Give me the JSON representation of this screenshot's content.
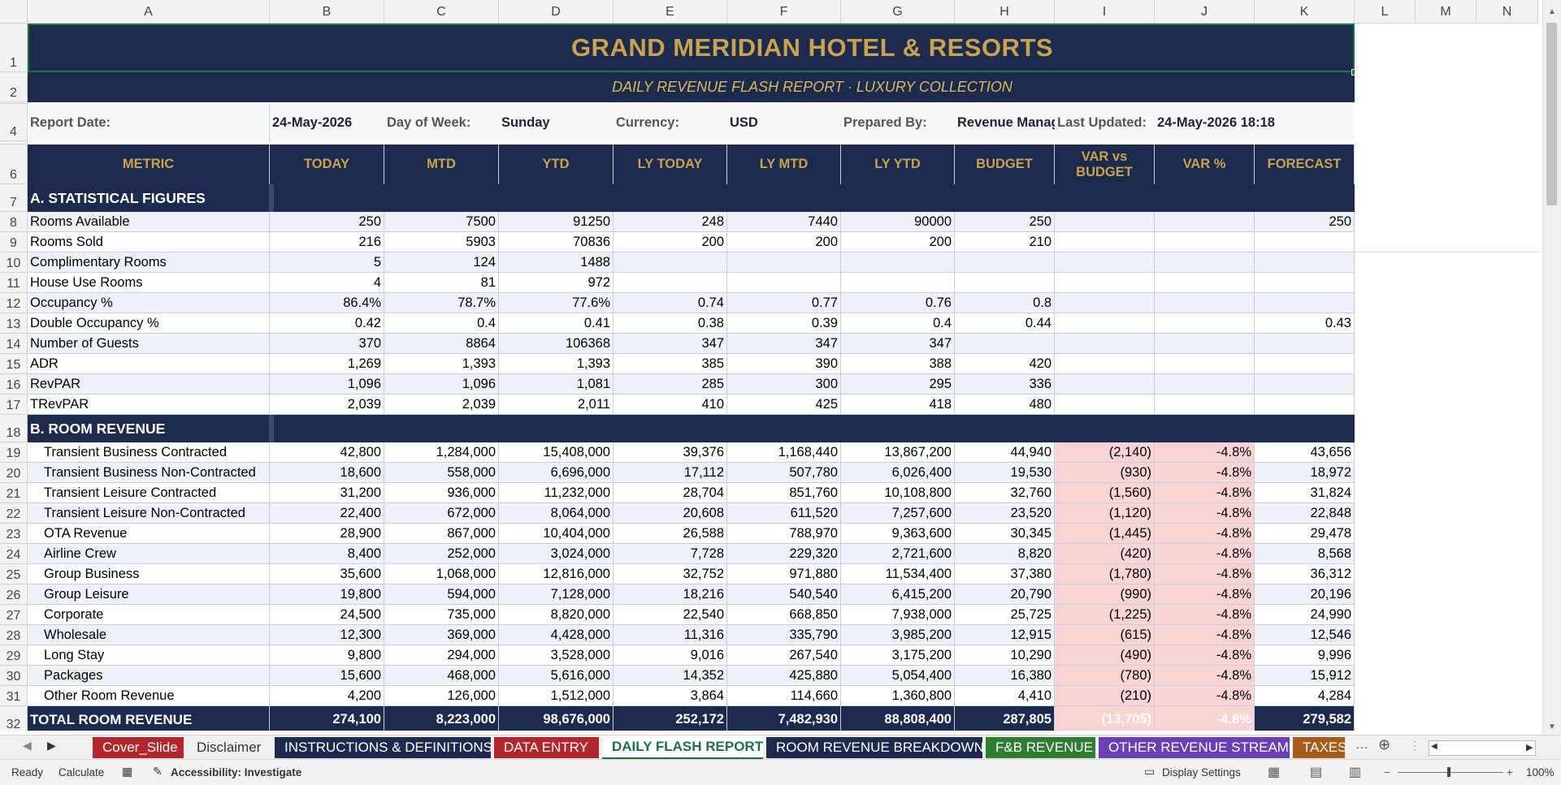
{
  "columns": [
    "A",
    "B",
    "C",
    "D",
    "E",
    "F",
    "G",
    "H",
    "I",
    "J",
    "K",
    "L",
    "M",
    "N"
  ],
  "banner": {
    "title": "GRAND MERIDIAN HOTEL & RESORTS",
    "subtitle": "DAILY REVENUE FLASH REPORT  ·  LUXURY COLLECTION"
  },
  "info": {
    "report_date_label": "Report Date:",
    "report_date": "24-May-2026",
    "dow_label": "Day of Week:",
    "dow": "Sunday",
    "currency_label": "Currency:",
    "currency": "USD",
    "prepared_label": "Prepared By:",
    "prepared": "Revenue Manag",
    "updated_label": "Last Updated:",
    "updated": "24-May-2026 18:18"
  },
  "headers": [
    "METRIC",
    "TODAY",
    "MTD",
    "YTD",
    "LY TODAY",
    "LY MTD",
    "LY YTD",
    "BUDGET",
    "VAR vs BUDGET",
    "VAR %",
    "FORECAST"
  ],
  "section_a": "A. STATISTICAL FIGURES",
  "stats_rows": [
    {
      "num": "8",
      "label": "Rooms Available",
      "v": [
        "250",
        "7500",
        "91250",
        "248",
        "7440",
        "90000",
        "250",
        "",
        "",
        "250"
      ]
    },
    {
      "num": "9",
      "label": "Rooms Sold",
      "v": [
        "216",
        "5903",
        "70836",
        "200",
        "200",
        "200",
        "210",
        "",
        "",
        ""
      ]
    },
    {
      "num": "10",
      "label": "Complimentary Rooms",
      "v": [
        "5",
        "124",
        "1488",
        "",
        "",
        "",
        "",
        "",
        "",
        ""
      ]
    },
    {
      "num": "11",
      "label": "House Use Rooms",
      "v": [
        "4",
        "81",
        "972",
        "",
        "",
        "",
        "",
        "",
        "",
        ""
      ]
    },
    {
      "num": "12",
      "label": "Occupancy %",
      "v": [
        "86.4%",
        "78.7%",
        "77.6%",
        "0.74",
        "0.77",
        "0.76",
        "0.8",
        "",
        "",
        ""
      ]
    },
    {
      "num": "13",
      "label": "Double Occupancy %",
      "v": [
        "0.42",
        "0.4",
        "0.41",
        "0.38",
        "0.39",
        "0.4",
        "0.44",
        "",
        "",
        "0.43"
      ]
    },
    {
      "num": "14",
      "label": "Number of Guests",
      "v": [
        "370",
        "8864",
        "106368",
        "347",
        "347",
        "347",
        "",
        "",
        "",
        ""
      ]
    },
    {
      "num": "15",
      "label": "ADR",
      "v": [
        "1,269",
        "1,393",
        "1,393",
        "385",
        "390",
        "388",
        "420",
        "",
        "",
        ""
      ]
    },
    {
      "num": "16",
      "label": "RevPAR",
      "v": [
        "1,096",
        "1,096",
        "1,081",
        "285",
        "300",
        "295",
        "336",
        "",
        "",
        ""
      ]
    },
    {
      "num": "17",
      "label": "TRevPAR",
      "v": [
        "2,039",
        "2,039",
        "2,011",
        "410",
        "425",
        "418",
        "480",
        "",
        "",
        ""
      ]
    }
  ],
  "section_b": "B. ROOM REVENUE",
  "revenue_rows": [
    {
      "num": "19",
      "label": "Transient Business Contracted",
      "v": [
        "42,800",
        "1,284,000",
        "15,408,000",
        "39,376",
        "1,168,440",
        "13,867,200",
        "44,940",
        "(2,140)",
        "-4.8%",
        "43,656"
      ]
    },
    {
      "num": "20",
      "label": "Transient Business Non-Contracted",
      "v": [
        "18,600",
        "558,000",
        "6,696,000",
        "17,112",
        "507,780",
        "6,026,400",
        "19,530",
        "(930)",
        "-4.8%",
        "18,972"
      ]
    },
    {
      "num": "21",
      "label": "Transient Leisure Contracted",
      "v": [
        "31,200",
        "936,000",
        "11,232,000",
        "28,704",
        "851,760",
        "10,108,800",
        "32,760",
        "(1,560)",
        "-4.8%",
        "31,824"
      ]
    },
    {
      "num": "22",
      "label": "Transient Leisure Non-Contracted",
      "v": [
        "22,400",
        "672,000",
        "8,064,000",
        "20,608",
        "611,520",
        "7,257,600",
        "23,520",
        "(1,120)",
        "-4.8%",
        "22,848"
      ]
    },
    {
      "num": "23",
      "label": "OTA Revenue",
      "v": [
        "28,900",
        "867,000",
        "10,404,000",
        "26,588",
        "788,970",
        "9,363,600",
        "30,345",
        "(1,445)",
        "-4.8%",
        "29,478"
      ]
    },
    {
      "num": "24",
      "label": "Airline Crew",
      "v": [
        "8,400",
        "252,000",
        "3,024,000",
        "7,728",
        "229,320",
        "2,721,600",
        "8,820",
        "(420)",
        "-4.8%",
        "8,568"
      ]
    },
    {
      "num": "25",
      "label": "Group Business",
      "v": [
        "35,600",
        "1,068,000",
        "12,816,000",
        "32,752",
        "971,880",
        "11,534,400",
        "37,380",
        "(1,780)",
        "-4.8%",
        "36,312"
      ]
    },
    {
      "num": "26",
      "label": "Group Leisure",
      "v": [
        "19,800",
        "594,000",
        "7,128,000",
        "18,216",
        "540,540",
        "6,415,200",
        "20,790",
        "(990)",
        "-4.8%",
        "20,196"
      ]
    },
    {
      "num": "27",
      "label": "Corporate",
      "v": [
        "24,500",
        "735,000",
        "8,820,000",
        "22,540",
        "668,850",
        "7,938,000",
        "25,725",
        "(1,225)",
        "-4.8%",
        "24,990"
      ]
    },
    {
      "num": "28",
      "label": "Wholesale",
      "v": [
        "12,300",
        "369,000",
        "4,428,000",
        "11,316",
        "335,790",
        "3,985,200",
        "12,915",
        "(615)",
        "-4.8%",
        "12,546"
      ]
    },
    {
      "num": "29",
      "label": "Long Stay",
      "v": [
        "9,800",
        "294,000",
        "3,528,000",
        "9,016",
        "267,540",
        "3,175,200",
        "10,290",
        "(490)",
        "-4.8%",
        "9,996"
      ]
    },
    {
      "num": "30",
      "label": "Packages",
      "v": [
        "15,600",
        "468,000",
        "5,616,000",
        "14,352",
        "425,880",
        "5,054,400",
        "16,380",
        "(780)",
        "-4.8%",
        "15,912"
      ]
    },
    {
      "num": "31",
      "label": "Other Room Revenue",
      "v": [
        "4,200",
        "126,000",
        "1,512,000",
        "3,864",
        "114,660",
        "1,360,800",
        "4,410",
        "(210)",
        "-4.8%",
        "4,284"
      ]
    }
  ],
  "total_row": {
    "num": "32",
    "label": "TOTAL ROOM REVENUE",
    "v": [
      "274,100",
      "8,223,000",
      "98,676,000",
      "252,172",
      "7,482,930",
      "88,808,400",
      "287,805",
      "(13,705)",
      "-4.8%",
      "279,582"
    ]
  },
  "tabs": [
    {
      "label": "Cover_Slide",
      "color": "#b3262d"
    },
    {
      "label": "Disclaimer",
      "color": "#f0f0f0"
    },
    {
      "label": "INSTRUCTIONS & DEFINITIONS",
      "color": "#1c2b4d"
    },
    {
      "label": "DATA ENTRY",
      "color": "#b3262d"
    },
    {
      "label": "DAILY FLASH REPORT",
      "color": "#ffffff"
    },
    {
      "label": "ROOM REVENUE BREAKDOWN",
      "color": "#1c2b4d"
    },
    {
      "label": "F&B REVENUE",
      "color": "#2e7d32"
    },
    {
      "label": "OTHER REVENUE STREAMS",
      "color": "#6a3fb5"
    },
    {
      "label": "TAXES",
      "color": "#a65a1c"
    }
  ],
  "status": {
    "ready": "Ready",
    "calculate": "Calculate",
    "accessibility": "Accessibility: Investigate",
    "display_settings": "Display Settings",
    "zoom": "100%"
  }
}
